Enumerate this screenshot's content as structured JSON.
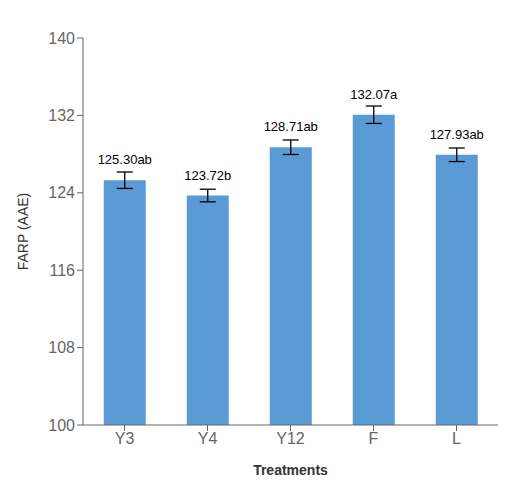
{
  "chart_data": {
    "type": "bar",
    "categories": [
      "Y3",
      "Y4",
      "Y12",
      "F",
      "L"
    ],
    "values": [
      125.3,
      123.72,
      128.71,
      132.07,
      127.93
    ],
    "errors": [
      0.85,
      0.65,
      0.75,
      0.9,
      0.7
    ],
    "value_labels": [
      "125.30ab",
      "123.72b",
      "128.71ab",
      "132.07a",
      "127.93ab"
    ],
    "data_labels": true,
    "color": "#5B9BD5",
    "xlabel": "Treatments",
    "ylabel": "FARP (AAE)",
    "ylim": [
      100,
      140
    ],
    "yticks": [
      100,
      108,
      116,
      124,
      132,
      140
    ],
    "grid": false
  }
}
